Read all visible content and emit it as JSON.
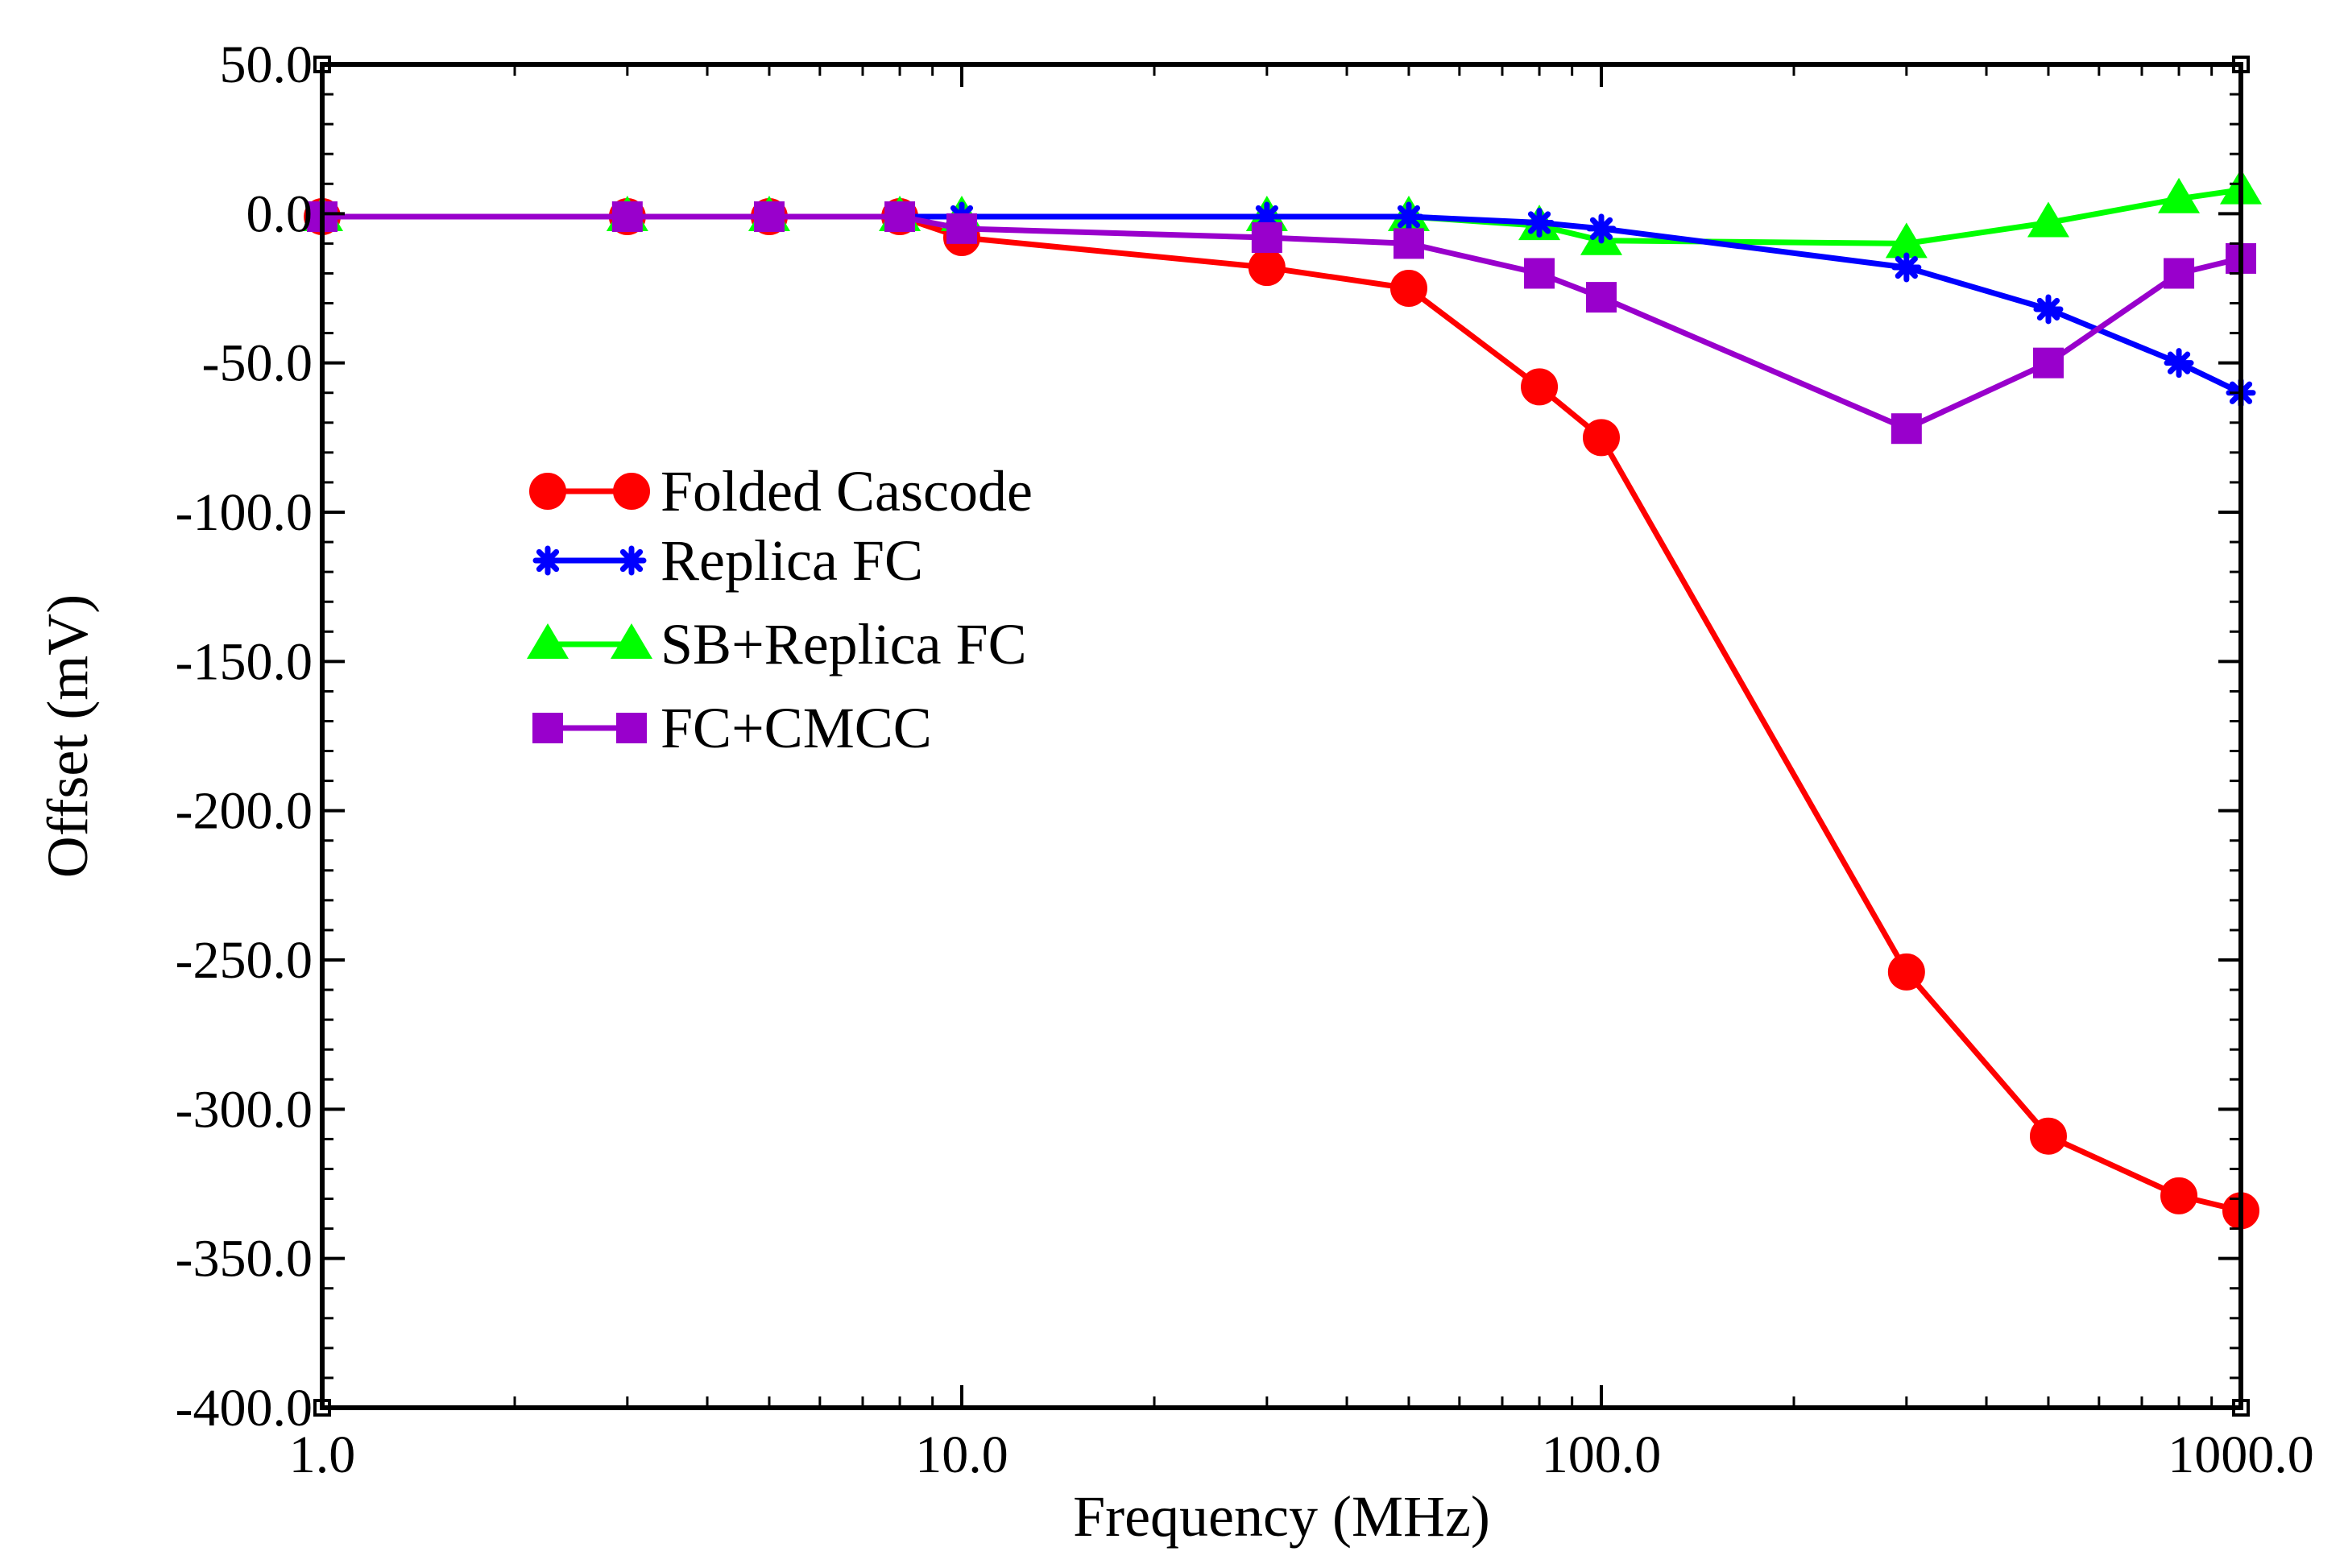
{
  "chart_data": {
    "type": "line",
    "title": "",
    "xlabel": "Frequency (MHz)",
    "ylabel": "Offset (mV)",
    "xscale": "log",
    "xlim": [
      1.0,
      1000.0
    ],
    "ylim": [
      -400.0,
      50.0
    ],
    "x_ticks": [
      "1.0",
      "10.0",
      "100.0",
      "1000.0"
    ],
    "y_ticks": [
      "50.0",
      "0.0",
      "-50.0",
      "-100.0",
      "-150.0",
      "-200.0",
      "-250.0",
      "-300.0",
      "-350.0",
      "-400.0"
    ],
    "legend_position": "center-left",
    "series": [
      {
        "name": "Folded Cascode",
        "color": "#ff0000",
        "marker": "circle",
        "x": [
          1,
          3,
          5,
          8,
          10,
          30,
          50,
          80,
          100,
          300,
          500,
          800,
          1000
        ],
        "values": [
          -1,
          -1,
          -1,
          -1,
          -8,
          -18,
          -25,
          -58,
          -75,
          -254,
          -309,
          -329,
          -334
        ]
      },
      {
        "name": "Replica FC",
        "color": "#0000ff",
        "marker": "star",
        "x": [
          1,
          3,
          5,
          8,
          10,
          30,
          50,
          80,
          100,
          300,
          500,
          800,
          1000
        ],
        "values": [
          -1,
          -1,
          -1,
          -1,
          -1,
          -1,
          -1,
          -3,
          -5,
          -18,
          -32,
          -50,
          -60
        ]
      },
      {
        "name": "SB+Replica FC",
        "color": "#00ff00",
        "marker": "triangle",
        "x": [
          1,
          3,
          5,
          8,
          10,
          30,
          50,
          80,
          100,
          300,
          500,
          800,
          1000
        ],
        "values": [
          -1,
          -1,
          -1,
          -1,
          -1,
          -1,
          -1,
          -4,
          -9,
          -10,
          -3,
          5,
          8
        ]
      },
      {
        "name": "FC+CMCC",
        "color": "#9900cc",
        "marker": "square",
        "x": [
          1,
          3,
          5,
          8,
          10,
          30,
          50,
          80,
          100,
          300,
          500,
          800,
          1000
        ],
        "values": [
          -1,
          -1,
          -1,
          -1,
          -5,
          -8,
          -10,
          -20,
          -28,
          -72,
          -50,
          -20,
          -15
        ]
      }
    ]
  }
}
